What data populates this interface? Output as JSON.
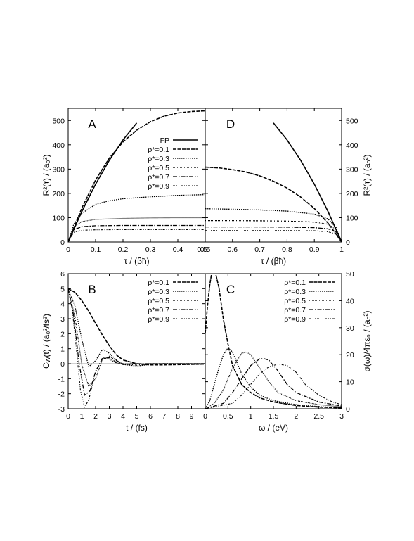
{
  "chart_data": [
    {
      "type": "line",
      "panel_label": "A",
      "xlabel": "τ / (βħ)",
      "ylabel": "R²(τ) / (a₀²)",
      "xlim": [
        0,
        0.5
      ],
      "ylim": [
        0,
        550
      ],
      "xticks": [
        "0",
        "0.1",
        "0.2",
        "0.3",
        "0.4",
        "0.5"
      ],
      "yticks": [
        "0",
        "100",
        "200",
        "300",
        "400",
        "500"
      ],
      "legend": "top-right",
      "series": [
        {
          "name": "FP",
          "x": [
            0,
            0.05,
            0.1,
            0.15,
            0.2,
            0.25
          ],
          "y": [
            0,
            126,
            238,
            336,
            420,
            490
          ]
        },
        {
          "name": "ρ*=0.1",
          "x": [
            0,
            0.05,
            0.1,
            0.15,
            0.2,
            0.25,
            0.3,
            0.35,
            0.4,
            0.45,
            0.5
          ],
          "y": [
            0,
            140,
            255,
            345,
            412,
            460,
            495,
            518,
            531,
            537,
            540
          ]
        },
        {
          "name": "ρ*=0.3",
          "x": [
            0,
            0.02,
            0.05,
            0.1,
            0.15,
            0.2,
            0.3,
            0.4,
            0.5
          ],
          "y": [
            0,
            72,
            118,
            155,
            170,
            178,
            186,
            192,
            195
          ]
        },
        {
          "name": "ρ*=0.5",
          "x": [
            0,
            0.02,
            0.05,
            0.1,
            0.2,
            0.3,
            0.4,
            0.5
          ],
          "y": [
            0,
            62,
            84,
            93,
            97,
            99,
            100,
            100
          ]
        },
        {
          "name": "ρ*=0.7",
          "x": [
            0,
            0.02,
            0.05,
            0.1,
            0.2,
            0.3,
            0.4,
            0.5
          ],
          "y": [
            0,
            50,
            63,
            67,
            68,
            68,
            68,
            68
          ]
        },
        {
          "name": "ρ*=0.9",
          "x": [
            0,
            0.02,
            0.05,
            0.1,
            0.2,
            0.3,
            0.4,
            0.5
          ],
          "y": [
            0,
            40,
            48,
            50,
            51,
            51,
            51,
            51
          ]
        }
      ]
    },
    {
      "type": "line",
      "panel_label": "D",
      "xlabel": "τ / (βħ)",
      "ylabel": "R²(τ) / (a₀²)",
      "xlim": [
        0.5,
        1
      ],
      "ylim": [
        0,
        550
      ],
      "xticks": [
        "0.6",
        "0.7",
        "0.8",
        "0.9",
        "1"
      ],
      "yticks": [
        "0",
        "100",
        "200",
        "300",
        "400",
        "500"
      ],
      "series": [
        {
          "name": "FP",
          "x": [
            0.75,
            0.8,
            0.85,
            0.9,
            0.95,
            1
          ],
          "y": [
            490,
            420,
            336,
            238,
            126,
            0
          ]
        },
        {
          "name": "ρ*=0.1",
          "x": [
            0.5,
            0.55,
            0.6,
            0.65,
            0.7,
            0.75,
            0.8,
            0.85,
            0.9,
            0.95,
            0.98,
            1
          ],
          "y": [
            308,
            305,
            298,
            288,
            272,
            250,
            222,
            185,
            138,
            78,
            32,
            0
          ]
        },
        {
          "name": "ρ*=0.3",
          "x": [
            0.5,
            0.6,
            0.7,
            0.8,
            0.9,
            0.95,
            0.98,
            1
          ],
          "y": [
            137,
            135,
            132,
            127,
            115,
            95,
            60,
            0
          ]
        },
        {
          "name": "ρ*=0.5",
          "x": [
            0.5,
            0.6,
            0.7,
            0.8,
            0.9,
            0.95,
            0.98,
            1
          ],
          "y": [
            88,
            88,
            87,
            86,
            82,
            73,
            52,
            0
          ]
        },
        {
          "name": "ρ*=0.7",
          "x": [
            0.5,
            0.6,
            0.7,
            0.8,
            0.9,
            0.95,
            0.98,
            1
          ],
          "y": [
            62,
            62,
            62,
            61,
            59,
            54,
            42,
            0
          ]
        },
        {
          "name": "ρ*=0.9",
          "x": [
            0.5,
            0.6,
            0.7,
            0.8,
            0.9,
            0.95,
            0.98,
            1
          ],
          "y": [
            47,
            47,
            47,
            47,
            46,
            42,
            33,
            0
          ]
        }
      ]
    },
    {
      "type": "line",
      "panel_label": "B",
      "xlabel": "t / (fs)",
      "ylabel": "Cᵥᵥ(t) / (a₀²/fs²)",
      "xlim": [
        0,
        10
      ],
      "ylim": [
        -3,
        6
      ],
      "xticks": [
        "0",
        "1",
        "2",
        "3",
        "4",
        "5",
        "6",
        "7",
        "8",
        "9"
      ],
      "yticks": [
        "-3",
        "-2",
        "-1",
        "0",
        "1",
        "2",
        "3",
        "4",
        "5",
        "6"
      ],
      "legend": "top-right",
      "series": [
        {
          "name": "ρ*=0.1",
          "x": [
            0,
            0.5,
            1,
            1.5,
            2,
            2.5,
            3,
            3.5,
            4,
            5,
            6,
            7,
            8,
            9,
            10
          ],
          "y": [
            5,
            4.75,
            4.2,
            3.5,
            2.7,
            1.9,
            1.2,
            0.6,
            0.25,
            0,
            -0.08,
            -0.08,
            -0.06,
            -0.04,
            -0.03
          ]
        },
        {
          "name": "ρ*=0.3",
          "x": [
            0,
            0.5,
            1,
            1.5,
            2,
            2.5,
            3,
            3.5,
            4,
            5,
            6,
            7,
            8,
            10
          ],
          "y": [
            5,
            3.8,
            1.6,
            -0.2,
            0.2,
            0.95,
            0.7,
            0.25,
            -0.05,
            -0.15,
            -0.05,
            0,
            0,
            0
          ]
        },
        {
          "name": "ρ*=0.5",
          "x": [
            0,
            0.5,
            1,
            1.5,
            2,
            2.5,
            3,
            3.5,
            4,
            5,
            6,
            7,
            8,
            10
          ],
          "y": [
            5,
            3.1,
            -0.1,
            -1.5,
            -1.0,
            0.3,
            0.5,
            0.2,
            0,
            -0.1,
            0,
            0,
            0,
            0
          ]
        },
        {
          "name": "ρ*=0.7",
          "x": [
            0,
            0.4,
            0.8,
            1.2,
            1.6,
            2,
            2.5,
            3,
            3.5,
            4,
            5,
            6,
            8,
            10
          ],
          "y": [
            5,
            3.2,
            0,
            -2.1,
            -1.8,
            -0.5,
            0.35,
            0.4,
            0.1,
            -0.05,
            0,
            0,
            0,
            0
          ]
        },
        {
          "name": "ρ*=0.9",
          "x": [
            0,
            0.3,
            0.6,
            0.9,
            1.2,
            1.5,
            2,
            2.5,
            3,
            3.5,
            4,
            5,
            6,
            10
          ],
          "y": [
            5,
            3.6,
            1.0,
            -1.8,
            -2.9,
            -2.4,
            -0.6,
            0.4,
            0.3,
            0.05,
            0,
            0,
            0,
            0
          ]
        }
      ]
    },
    {
      "type": "line",
      "panel_label": "C",
      "xlabel": "ω / (eV)",
      "ylabel": "σ(ω)/4πε₀ / (a₀²)",
      "xlim": [
        0,
        3
      ],
      "ylim": [
        0,
        50
      ],
      "xticks": [
        "0",
        "0.5",
        "1",
        "1.5",
        "2",
        "2.5",
        "3"
      ],
      "yticks": [
        "0",
        "10",
        "20",
        "30",
        "40",
        "50"
      ],
      "legend": "top-right",
      "series": [
        {
          "name": "ρ*=0.1",
          "x": [
            0,
            0.05,
            0.1,
            0.15,
            0.2,
            0.3,
            0.4,
            0.5,
            0.6,
            0.8,
            1.0,
            1.2,
            1.5,
            2.0,
            2.5,
            3.0
          ],
          "y": [
            28,
            38,
            46,
            51,
            52,
            45,
            33,
            24,
            16,
            9,
            6,
            4,
            2.5,
            1.2,
            0.6,
            0.3
          ]
        },
        {
          "name": "ρ*=0.3",
          "x": [
            0,
            0.1,
            0.2,
            0.3,
            0.4,
            0.5,
            0.6,
            0.7,
            0.8,
            1.0,
            1.2,
            1.5,
            2.0,
            2.5,
            3.0
          ],
          "y": [
            0,
            3,
            9,
            15,
            20,
            22.5,
            21,
            17,
            13,
            8,
            5,
            3,
            1.5,
            0.8,
            0.4
          ]
        },
        {
          "name": "ρ*=0.5",
          "x": [
            0,
            0.2,
            0.4,
            0.6,
            0.8,
            0.9,
            1.0,
            1.2,
            1.4,
            1.6,
            2.0,
            2.5,
            3.0
          ],
          "y": [
            0,
            2,
            7,
            15,
            20.5,
            21,
            20,
            15,
            10,
            6,
            3,
            1.5,
            0.7
          ]
        },
        {
          "name": "ρ*=0.7",
          "x": [
            0,
            0.4,
            0.6,
            0.8,
            1.0,
            1.2,
            1.3,
            1.4,
            1.6,
            1.8,
            2.0,
            2.5,
            3.0
          ],
          "y": [
            0,
            2,
            6,
            11,
            16,
            18.5,
            18.5,
            18,
            14,
            9,
            6,
            2.5,
            1
          ]
        },
        {
          "name": "ρ*=0.9",
          "x": [
            0,
            0.6,
            0.8,
            1.0,
            1.2,
            1.4,
            1.6,
            1.8,
            2.0,
            2.2,
            2.5,
            2.8,
            3.0
          ],
          "y": [
            0,
            2,
            5,
            9,
            13,
            15.5,
            16.5,
            16,
            13.5,
            9,
            5,
            2.5,
            1.5
          ]
        }
      ]
    }
  ]
}
